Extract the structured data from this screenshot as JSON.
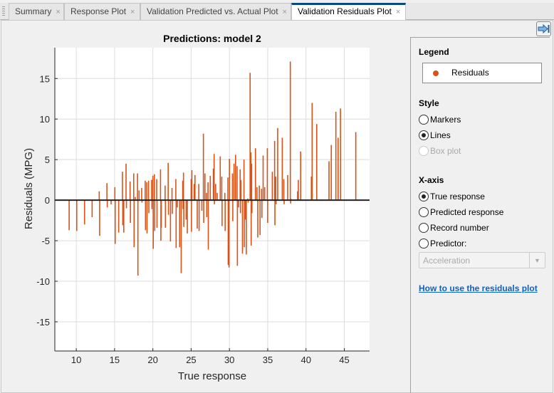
{
  "tabs": [
    {
      "label": "Summary",
      "active": false
    },
    {
      "label": "Response Plot",
      "active": false
    },
    {
      "label": "Validation Predicted vs. Actual Plot",
      "active": false
    },
    {
      "label": "Validation Residuals Plot",
      "active": true
    }
  ],
  "close_glyph": "×",
  "panel": {
    "legend_title": "Legend",
    "legend_entry": "Residuals",
    "style_title": "Style",
    "style_options": [
      "Markers",
      "Lines",
      "Box plot"
    ],
    "style_selected": "Lines",
    "style_disabled": [
      "Box plot"
    ],
    "xaxis_title": "X-axis",
    "xaxis_options": [
      "True response",
      "Predicted response",
      "Record number",
      "Predictor:"
    ],
    "xaxis_selected": "True response",
    "predictor_select": "Acceleration",
    "help_link": "How to use the residuals plot",
    "collapse_icon": "collapse-right-arrow-icon"
  },
  "chart_data": {
    "type": "stem",
    "title": "Predictions: model 2",
    "xlabel": "True response",
    "ylabel": "Residuals (MPG)",
    "xlim": [
      7.2,
      48.3
    ],
    "ylim": [
      -18.6,
      18.8
    ],
    "xticks": [
      10,
      15,
      20,
      25,
      30,
      35,
      40,
      45
    ],
    "yticks": [
      -15,
      -10,
      -5,
      0,
      5,
      10,
      15
    ],
    "grid": true,
    "series_color": "#d95319",
    "series": [
      {
        "name": "Residuals",
        "points": [
          [
            9.07,
            -3.7
          ],
          [
            10.06,
            -3.8
          ],
          [
            11.08,
            -3.0
          ],
          [
            12.07,
            -2.1
          ],
          [
            13.0,
            1.1
          ],
          [
            13.05,
            -4.4
          ],
          [
            14.0,
            2.1
          ],
          [
            14.05,
            -0.9
          ],
          [
            14.55,
            -0.5
          ],
          [
            15.04,
            1.6
          ],
          [
            15.08,
            -5.4
          ],
          [
            15.54,
            -4.0
          ],
          [
            16.03,
            3.5
          ],
          [
            16.07,
            -3.1
          ],
          [
            16.2,
            -4.0
          ],
          [
            16.5,
            4.5
          ],
          [
            16.55,
            -1.0
          ],
          [
            17.03,
            2.3
          ],
          [
            17.07,
            -2.8
          ],
          [
            17.5,
            3.3
          ],
          [
            17.55,
            -5.8
          ],
          [
            17.7,
            0.4
          ],
          [
            18.0,
            3.3
          ],
          [
            18.05,
            -9.3
          ],
          [
            18.2,
            1.2
          ],
          [
            18.54,
            1.5
          ],
          [
            18.58,
            -0.3
          ],
          [
            19.0,
            2.4
          ],
          [
            19.04,
            -3.7
          ],
          [
            19.2,
            2.2
          ],
          [
            19.24,
            -4.1
          ],
          [
            19.44,
            2.4
          ],
          [
            19.48,
            -1.6
          ],
          [
            19.84,
            2.5
          ],
          [
            19.88,
            -1.1
          ],
          [
            20.0,
            3.0
          ],
          [
            20.05,
            -6.0
          ],
          [
            20.2,
            3.2
          ],
          [
            20.24,
            -3.8
          ],
          [
            20.5,
            2.6
          ],
          [
            20.54,
            -3.4
          ],
          [
            21.0,
            3.8
          ],
          [
            21.05,
            -5.0
          ],
          [
            21.1,
            -3.4
          ],
          [
            21.6,
            1.8
          ],
          [
            21.64,
            -3.4
          ],
          [
            22.0,
            4.6
          ],
          [
            22.04,
            -1.8
          ],
          [
            22.3,
            -5.1
          ],
          [
            22.5,
            1.5
          ],
          [
            22.54,
            -1.7
          ],
          [
            23.0,
            2.6
          ],
          [
            23.04,
            -5.9
          ],
          [
            23.2,
            -0.9
          ],
          [
            23.5,
            -5.8
          ],
          [
            23.7,
            -9.0
          ],
          [
            23.9,
            2.4
          ],
          [
            23.94,
            -1.1
          ],
          [
            24.0,
            3.4
          ],
          [
            24.04,
            -3.3
          ],
          [
            24.35,
            -2.4
          ],
          [
            24.5,
            -4.1
          ],
          [
            25.0,
            2.6
          ],
          [
            25.04,
            -3.9
          ],
          [
            25.1,
            3.7
          ],
          [
            25.4,
            2.0
          ],
          [
            25.5,
            3.1
          ],
          [
            25.8,
            -3.5
          ],
          [
            26.0,
            2.0
          ],
          [
            26.04,
            -3.8
          ],
          [
            26.4,
            -1.3
          ],
          [
            26.6,
            8.2
          ],
          [
            26.64,
            -2.8
          ],
          [
            26.8,
            3.3
          ],
          [
            27.0,
            0.9
          ],
          [
            27.04,
            -2.1
          ],
          [
            27.2,
            2.2
          ],
          [
            27.24,
            -6.1
          ],
          [
            27.5,
            3.0
          ],
          [
            27.9,
            3.9
          ],
          [
            28.0,
            5.7
          ],
          [
            28.04,
            -0.5
          ],
          [
            28.2,
            2.0
          ],
          [
            28.4,
            0.9
          ],
          [
            28.8,
            5.4
          ],
          [
            29.0,
            2.9
          ],
          [
            29.04,
            -3.2
          ],
          [
            29.4,
            0.9
          ],
          [
            29.44,
            -3.8
          ],
          [
            29.8,
            2.8
          ],
          [
            29.84,
            -8.0
          ],
          [
            29.95,
            -8.3
          ],
          [
            30.0,
            5.1
          ],
          [
            30.4,
            3.3
          ],
          [
            30.44,
            -2.6
          ],
          [
            30.6,
            4.5
          ],
          [
            30.8,
            5.6
          ],
          [
            31.0,
            4.2
          ],
          [
            31.04,
            -8.1
          ],
          [
            31.2,
            -0.9
          ],
          [
            31.4,
            3.8
          ],
          [
            31.44,
            -1.6
          ],
          [
            31.5,
            2.5
          ],
          [
            31.7,
            -6.6
          ],
          [
            31.9,
            5.0
          ],
          [
            31.94,
            -5.8
          ],
          [
            32.1,
            -2.4
          ],
          [
            32.2,
            -6.7
          ],
          [
            32.4,
            0.2
          ],
          [
            32.44,
            -0.3
          ],
          [
            32.7,
            15.7
          ],
          [
            32.8,
            5.9
          ],
          [
            32.84,
            -5.6
          ],
          [
            32.9,
            4.5
          ],
          [
            32.94,
            -1.6
          ],
          [
            33.4,
            6.4
          ],
          [
            33.6,
            1.6
          ],
          [
            33.7,
            -4.6
          ],
          [
            33.9,
            1.8
          ],
          [
            34.0,
            -4.3
          ],
          [
            34.2,
            1.4
          ],
          [
            34.24,
            -2.2
          ],
          [
            34.4,
            5.5
          ],
          [
            34.6,
            1.6
          ],
          [
            34.95,
            6.4
          ],
          [
            34.99,
            -2.8
          ],
          [
            35.6,
            3.5
          ],
          [
            35.9,
            7.3
          ],
          [
            35.94,
            -3.1
          ],
          [
            36.05,
            2.9
          ],
          [
            36.09,
            -0.5
          ],
          [
            36.3,
            8.9
          ],
          [
            36.9,
            7.7
          ],
          [
            37.1,
            2.6
          ],
          [
            37.14,
            -0.5
          ],
          [
            37.6,
            3.1
          ],
          [
            37.95,
            17.1
          ],
          [
            37.99,
            -0.4
          ],
          [
            38.0,
            0.2
          ],
          [
            38.9,
            1.1
          ],
          [
            39.0,
            2.5
          ],
          [
            39.3,
            6.0
          ],
          [
            40.7,
            2.9
          ],
          [
            40.8,
            12.0
          ],
          [
            41.4,
            9.4
          ],
          [
            43.0,
            4.8
          ],
          [
            43.3,
            6.8
          ],
          [
            43.9,
            10.9
          ],
          [
            44.2,
            7.7
          ],
          [
            44.5,
            11.3
          ],
          [
            46.5,
            8.4
          ]
        ]
      }
    ]
  }
}
